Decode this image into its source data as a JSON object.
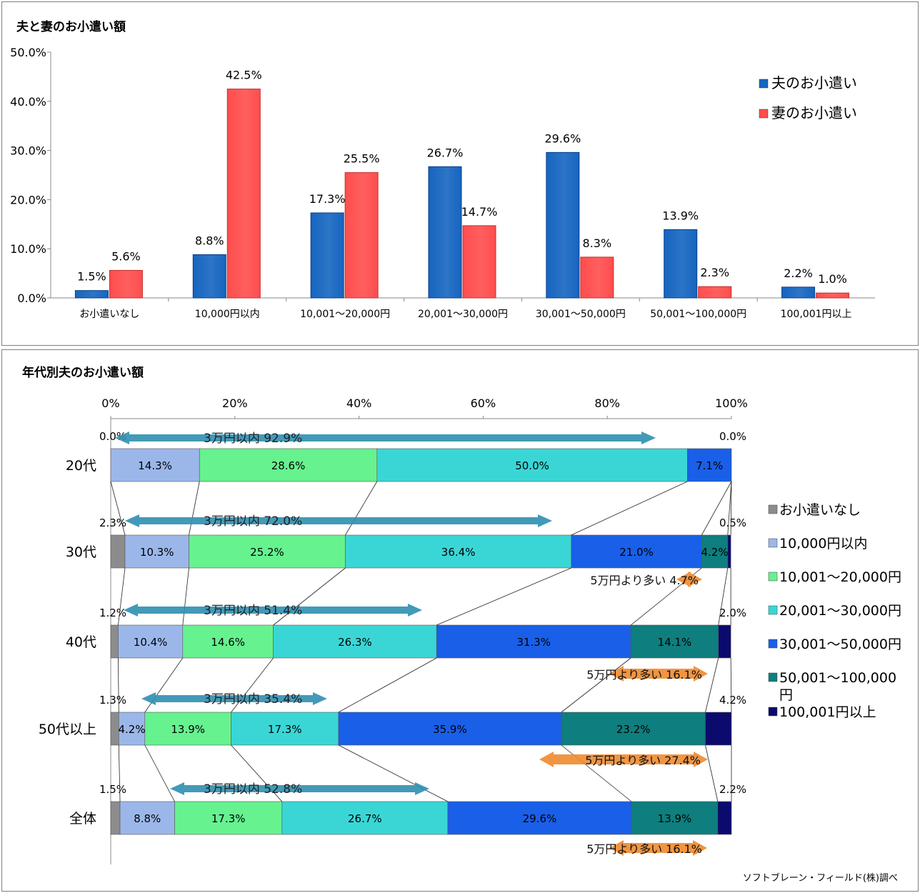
{
  "chart_data": [
    {
      "type": "bar",
      "title": "夫と妻のお小遣い額",
      "categories": [
        "お小遣いなし",
        "10,000円以内",
        "10,001〜20,000円",
        "20,001〜30,000円",
        "30,001〜50,000円",
        "50,001〜100,000円",
        "100,001円以上"
      ],
      "series": [
        {
          "name": "夫のお小遣い",
          "values": [
            1.5,
            8.8,
            17.3,
            26.7,
            29.6,
            13.9,
            2.2
          ],
          "labels": [
            "1.5%",
            "8.8%",
            "17.3%",
            "26.7%",
            "29.6%",
            "13.9%",
            "2.2%"
          ]
        },
        {
          "name": "妻のお小遣い",
          "values": [
            5.6,
            42.5,
            25.5,
            14.7,
            8.3,
            2.3,
            1.0
          ],
          "labels": [
            "5.6%",
            "42.5%",
            "25.5%",
            "14.7%",
            "8.3%",
            "2.3%",
            "1.0%"
          ]
        }
      ],
      "ylim": [
        0,
        50
      ],
      "yticks": [
        "0.0%",
        "10.0%",
        "20.0%",
        "30.0%",
        "40.0%",
        "50.0%"
      ],
      "legend_position": "top-right",
      "colors": [
        "#1565c0",
        "#ff4d4d"
      ]
    },
    {
      "type": "bar",
      "orientation": "horizontal-stacked-100",
      "title": "年代別夫のお小遣い額",
      "xticks": [
        "0%",
        "20%",
        "40%",
        "60%",
        "80%",
        "100%"
      ],
      "categories": [
        "20代",
        "30代",
        "40代",
        "50代以上",
        "全体"
      ],
      "series_names": [
        "お小遣いなし",
        "10,000円以内",
        "10,001〜20,000円",
        "20,001〜30,000円",
        "30,001〜50,000円",
        "50,001〜100,000円",
        "100,001円以上"
      ],
      "colors": [
        "#8c8c8c",
        "#9bb7ea",
        "#66f28f",
        "#3ad6d6",
        "#1a5fe8",
        "#0e7e7e",
        "#0b0b6e"
      ],
      "rows": [
        {
          "values": [
            0,
            14.3,
            28.6,
            50.0,
            7.1,
            0,
            0
          ],
          "labels": [
            "0.0%",
            "14.3%",
            "28.6%",
            "50.0%",
            "7.1%",
            "",
            "0.0%"
          ],
          "within30k": "3万円以内  92.9%",
          "over50k": ""
        },
        {
          "values": [
            2.3,
            10.3,
            25.2,
            36.4,
            21.0,
            4.2,
            0.5
          ],
          "labels": [
            "2.3%",
            "10.3%",
            "25.2%",
            "36.4%",
            "21.0%",
            "4.2%",
            "0.5%"
          ],
          "within30k": "3万円以内  72.0%",
          "over50k": "5万円より多い  4.7%"
        },
        {
          "values": [
            1.2,
            10.4,
            14.6,
            26.3,
            31.3,
            14.1,
            2.0
          ],
          "labels": [
            "1.2%",
            "10.4%",
            "14.6%",
            "26.3%",
            "31.3%",
            "14.1%",
            "2.0%"
          ],
          "within30k": "3万円以内  51.4%",
          "over50k": "5万円より多い  16.1%"
        },
        {
          "values": [
            1.3,
            4.2,
            13.9,
            17.3,
            35.9,
            23.2,
            4.2
          ],
          "labels": [
            "1.3%",
            "4.2%",
            "13.9%",
            "17.3%",
            "35.9%",
            "23.2%",
            "4.2%"
          ],
          "within30k": "3万円以内  35.4%",
          "over50k": "5万円より多い  27.4%"
        },
        {
          "values": [
            1.5,
            8.8,
            17.3,
            26.7,
            29.6,
            13.9,
            2.2
          ],
          "labels": [
            "1.5%",
            "8.8%",
            "17.3%",
            "26.7%",
            "29.6%",
            "13.9%",
            "2.2%"
          ],
          "within30k": "3万円以内  52.8%",
          "over50k": "5万円より多い  16.1%"
        }
      ],
      "source": "ソフトブレーン・フィールド(株)調べ"
    }
  ]
}
